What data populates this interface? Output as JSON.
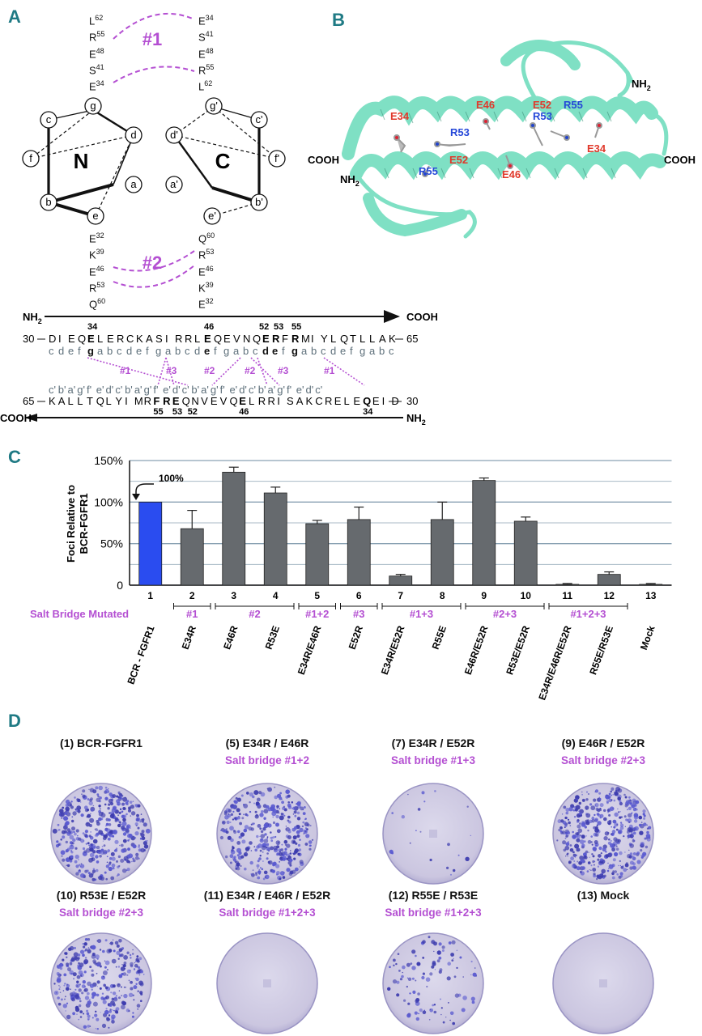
{
  "panels": {
    "a": "A",
    "b": "B",
    "c": "C",
    "d": "D"
  },
  "panelA": {
    "nterm_label": "N",
    "cterm_label": "C",
    "left_top_residues": [
      [
        "L",
        "62"
      ],
      [
        "R",
        "55"
      ],
      [
        "E",
        "48"
      ],
      [
        "S",
        "41"
      ],
      [
        "E",
        "34"
      ]
    ],
    "right_top_residues": [
      [
        "E",
        "34"
      ],
      [
        "S",
        "41"
      ],
      [
        "E",
        "48"
      ],
      [
        "R",
        "55"
      ],
      [
        "L",
        "62"
      ]
    ],
    "left_bottom_residues": [
      [
        "E",
        "32"
      ],
      [
        "K",
        "39"
      ],
      [
        "E",
        "46"
      ],
      [
        "R",
        "53"
      ],
      [
        "Q",
        "60"
      ]
    ],
    "right_bottom_residues": [
      [
        "Q",
        "60"
      ],
      [
        "R",
        "53"
      ],
      [
        "E",
        "46"
      ],
      [
        "K",
        "39"
      ],
      [
        "E",
        "32"
      ]
    ],
    "bridge1_label": "#1",
    "bridge2_label": "#2",
    "heptad_left": [
      "c",
      "g",
      "d",
      "f",
      "a",
      "b",
      "e"
    ],
    "heptad_right": [
      "g'",
      "c'",
      "d'",
      "f'",
      "a'",
      "b'",
      "e'"
    ],
    "seq_top_arrow_left": "NH",
    "seq_top_arrow_right": "COOH",
    "seq_top": "DIEQELERCKASIRRLEQEVNQERFRMIYLQTLLAK",
    "seq_top_start": "30",
    "seq_top_end": "65",
    "seq_top_numbers": [
      "34",
      "46",
      "52",
      "53",
      "55"
    ],
    "heptad_top": "cdefgabcdefgabcdefgabcdefgabcdefgabc",
    "bridge_labels_top": [
      "#1",
      "#3",
      "#2",
      "#2",
      "#3",
      "#1"
    ],
    "heptad_bottom": "c'b'a'g'f'e'd'c'b'a'g'f'e'd'c'b'a'g'f'e'd'c'b'a'g'f'e'd'c'",
    "seq_bottom": "KALLTQLYIMRFREQNVEVQELRRISAKCRELEQEID",
    "seq_bottom_start": "65",
    "seq_bottom_end": "30",
    "seq_bottom_numbers": [
      "55",
      "53",
      "52",
      "46",
      "34"
    ],
    "seq_bottom_arrow_left": "COOH",
    "seq_bottom_arrow_right": "NH"
  },
  "panelB": {
    "labels_red": [
      "E34",
      "E46",
      "E52",
      "E52",
      "E46",
      "E34"
    ],
    "labels_blue": [
      "R55",
      "R53",
      "R53",
      "R55"
    ],
    "cooh_left": "COOH",
    "nh2_left": "NH",
    "cooh_right": "COOH",
    "nh2_right": "NH",
    "ribbon_color": "#7fe0c4"
  },
  "chart_data": {
    "type": "bar",
    "ylabel": "Foci Relative to BCR-FGFR1",
    "yticks": [
      "0",
      "50%",
      "100%",
      "150%"
    ],
    "ylim": [
      0,
      150
    ],
    "annotation": "100%",
    "categories": [
      "BCR - FGFR1",
      "E34R",
      "E46R",
      "R53E",
      "E34R/E46R",
      "E52R",
      "E34R/E52R",
      "R55E",
      "E46R/E52R",
      "R53E/E52R",
      "E34R/E46R/E52R",
      "R55E/R53E",
      "Mock"
    ],
    "numbers": [
      "1",
      "2",
      "3",
      "4",
      "5",
      "6",
      "7",
      "8",
      "9",
      "10",
      "11",
      "12",
      "13"
    ],
    "values": [
      100,
      68,
      136,
      111,
      74,
      79,
      11,
      79,
      126,
      77,
      1,
      13,
      1
    ],
    "errors": [
      0,
      22,
      6,
      7,
      4,
      15,
      2,
      21,
      3,
      5,
      1,
      3,
      1
    ],
    "bar_colors": [
      "#2a4cf0",
      "#666a6e",
      "#666a6e",
      "#666a6e",
      "#666a6e",
      "#666a6e",
      "#666a6e",
      "#666a6e",
      "#666a6e",
      "#666a6e",
      "#666a6e",
      "#666a6e",
      "#666a6e"
    ],
    "salt_bridge_title": "Salt Bridge Mutated",
    "salt_bridge_groups": [
      {
        "label": "#1",
        "from": 2,
        "to": 2
      },
      {
        "label": "#2",
        "from": 3,
        "to": 4
      },
      {
        "label": "#1+2",
        "from": 5,
        "to": 5
      },
      {
        "label": "#3",
        "from": 6,
        "to": 6
      },
      {
        "label": "#1+3",
        "from": 7,
        "to": 8
      },
      {
        "label": "#2+3",
        "from": 9,
        "to": 10
      },
      {
        "label": "#1+2+3",
        "from": 11,
        "to": 12
      }
    ]
  },
  "panelD": {
    "dishes": [
      {
        "title": "(1) BCR-FGFR1",
        "subtitle": "",
        "density": 1.0
      },
      {
        "title": "(5) E34R / E46R",
        "subtitle": "Salt bridge #1+2",
        "density": 0.85
      },
      {
        "title": "(7) E34R / E52R",
        "subtitle": "Salt bridge #1+3",
        "density": 0.05
      },
      {
        "title": "(9) E46R / E52R",
        "subtitle": "Salt bridge #2+3",
        "density": 1.0
      },
      {
        "title": "(10) R53E / E52R",
        "subtitle": "Salt bridge #2+3",
        "density": 0.75
      },
      {
        "title": "(11) E34R / E46R / E52R",
        "subtitle": "Salt bridge #1+2+3",
        "density": 0.0
      },
      {
        "title": "(12) R55E / R53E",
        "subtitle": "Salt bridge #1+2+3",
        "density": 0.25
      },
      {
        "title": "(13) Mock",
        "subtitle": "",
        "density": 0.0
      }
    ]
  }
}
